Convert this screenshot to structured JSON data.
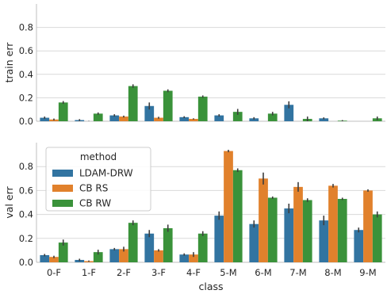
{
  "chart_data": {
    "type": "bar",
    "categories": [
      "0-F",
      "1-F",
      "2-F",
      "3-F",
      "4-F",
      "5-M",
      "6-M",
      "7-M",
      "8-M",
      "9-M"
    ],
    "xlabel": "class",
    "series_names": [
      "LDAM-DRW",
      "CB RS",
      "CB RW"
    ],
    "colors": [
      "#3274a1",
      "#e1812c",
      "#3a923a"
    ],
    "legend": {
      "title": "method",
      "labels": [
        "LDAM-DRW",
        "CB RS",
        "CB RW"
      ],
      "placement": "upper-left of lower panel"
    },
    "grid": true,
    "panels": [
      {
        "ylabel": "train err",
        "ylim": [
          0,
          1.0
        ],
        "yticks": [
          "0.0",
          "0.2",
          "0.4",
          "0.6",
          "0.8"
        ],
        "series": [
          {
            "name": "LDAM-DRW",
            "values": [
              0.03,
              0.01,
              0.05,
              0.13,
              0.035,
              0.05,
              0.025,
              0.14,
              0.025,
              0.0
            ],
            "err": [
              0.01,
              0.008,
              0.01,
              0.03,
              0.008,
              0.01,
              0.01,
              0.03,
              0.008,
              0.0
            ]
          },
          {
            "name": "CB RS",
            "values": [
              0.015,
              0.0,
              0.04,
              0.03,
              0.02,
              0.0,
              0.0,
              0.0,
              0.0,
              0.0
            ],
            "err": [
              0.008,
              0.003,
              0.008,
              0.008,
              0.005,
              0.0,
              0.0,
              0.0,
              0.0,
              0.0
            ]
          },
          {
            "name": "CB RW",
            "values": [
              0.16,
              0.065,
              0.3,
              0.26,
              0.21,
              0.08,
              0.065,
              0.02,
              0.005,
              0.025
            ],
            "err": [
              0.012,
              0.01,
              0.015,
              0.012,
              0.01,
              0.025,
              0.015,
              0.02,
              0.005,
              0.015
            ]
          }
        ]
      },
      {
        "ylabel": "val err",
        "ylim": [
          0,
          1.0
        ],
        "yticks": [
          "0.0",
          "0.2",
          "0.4",
          "0.6",
          "0.8"
        ],
        "series": [
          {
            "name": "LDAM-DRW",
            "values": [
              0.06,
              0.02,
              0.11,
              0.24,
              0.065,
              0.39,
              0.32,
              0.45,
              0.35,
              0.27
            ],
            "err": [
              0.01,
              0.01,
              0.01,
              0.03,
              0.01,
              0.035,
              0.03,
              0.04,
              0.04,
              0.02
            ]
          },
          {
            "name": "CB RS",
            "values": [
              0.045,
              0.01,
              0.11,
              0.1,
              0.065,
              0.93,
              0.7,
              0.63,
              0.64,
              0.6
            ],
            "err": [
              0.01,
              0.005,
              0.02,
              0.01,
              0.02,
              0.01,
              0.05,
              0.04,
              0.015,
              0.01
            ]
          },
          {
            "name": "CB RW",
            "values": [
              0.165,
              0.085,
              0.33,
              0.285,
              0.24,
              0.77,
              0.54,
              0.52,
              0.53,
              0.4
            ],
            "err": [
              0.025,
              0.02,
              0.02,
              0.03,
              0.02,
              0.015,
              0.01,
              0.015,
              0.01,
              0.025
            ]
          }
        ]
      }
    ]
  }
}
